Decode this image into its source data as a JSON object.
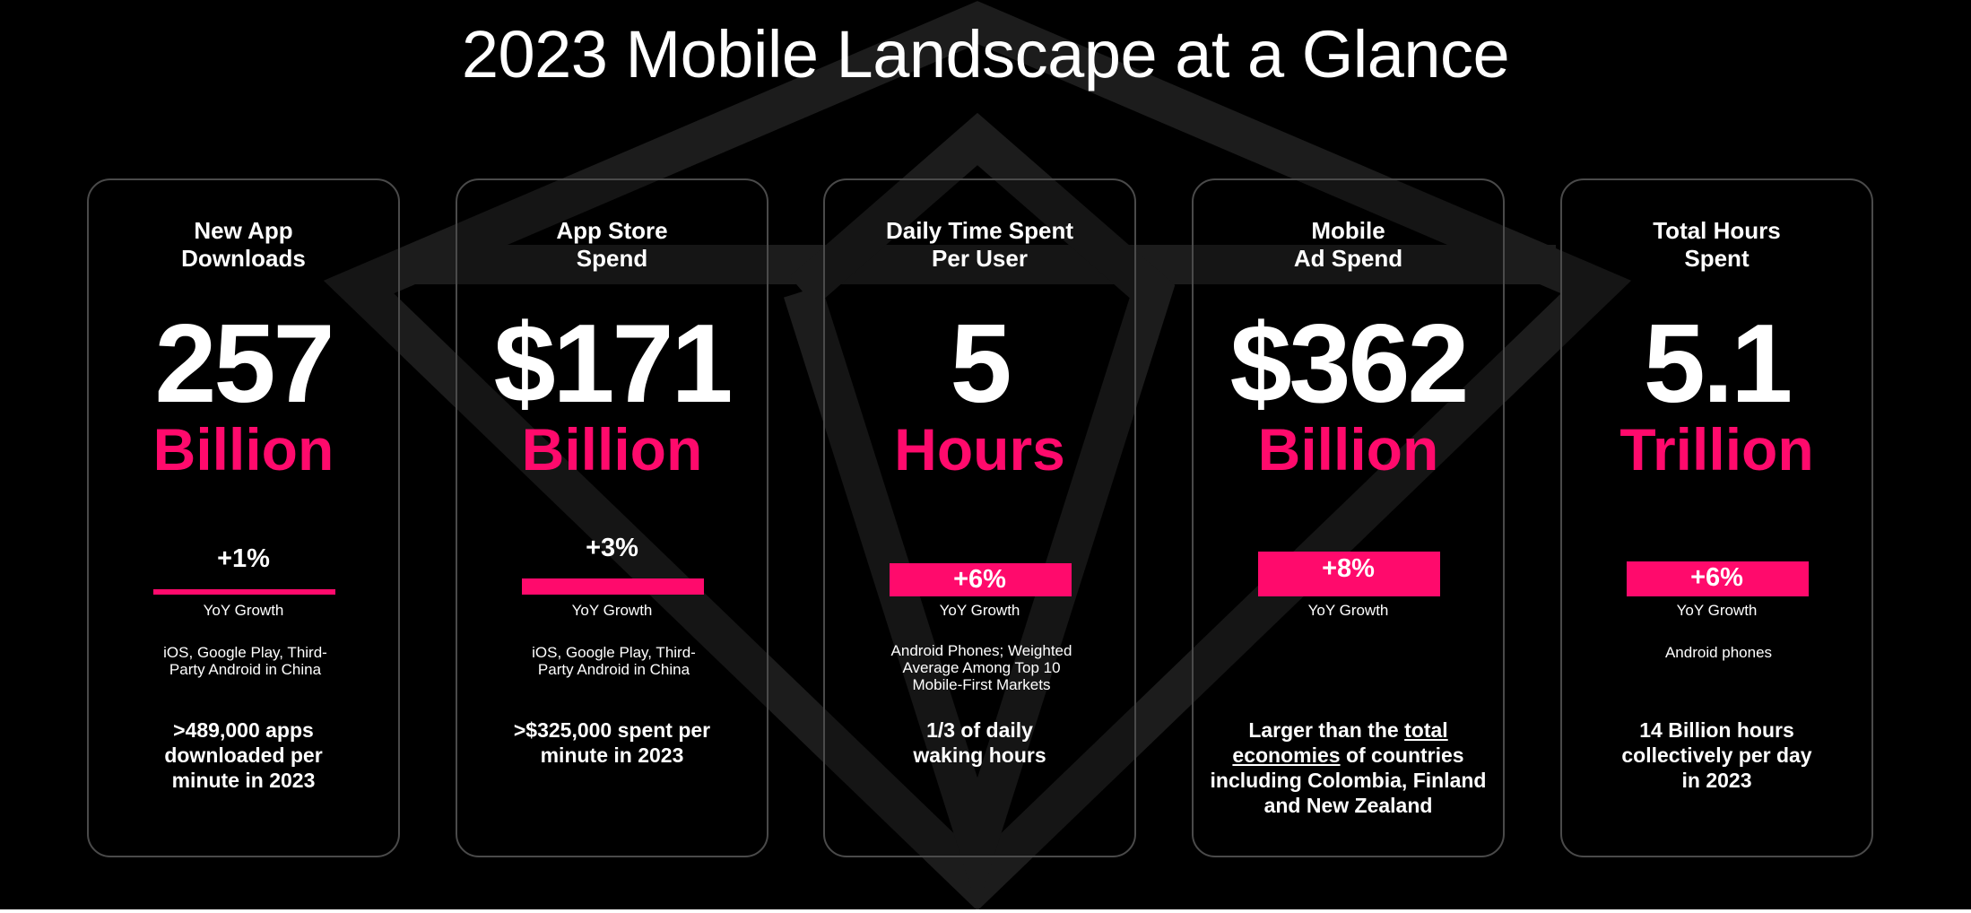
{
  "title": "2023 Mobile Landscape at a Glance",
  "colors": {
    "accent": "#ff0a6c",
    "background": "#000000",
    "card_border": "#4a4a4a",
    "text": "#ffffff"
  },
  "cards": [
    {
      "title": "New App\nDownloads",
      "value": "257",
      "unit": "Billion",
      "growth": "+1%",
      "growth_label": "YoY Growth",
      "note": "iOS, Google Play, Third-\nParty Android in China",
      "fact": ">489,000 apps\ndownloaded per\nminute in 2023"
    },
    {
      "title": "App Store\nSpend",
      "value": "$171",
      "unit": "Billion",
      "growth": "+3%",
      "growth_label": "YoY Growth",
      "note": "iOS, Google Play, Third-\nParty Android in China",
      "fact": ">$325,000 spent per\nminute in 2023"
    },
    {
      "title": "Daily Time Spent\nPer User",
      "value": "5",
      "unit": "Hours",
      "growth": "+6%",
      "growth_label": "YoY Growth",
      "note": "Android Phones; Weighted\nAverage Among Top 10\nMobile-First  Markets",
      "fact": "1/3 of daily\nwaking hours"
    },
    {
      "title": "Mobile\nAd Spend",
      "value": "$362",
      "unit": "Billion",
      "growth": "+8%",
      "growth_label": "YoY Growth",
      "note": "",
      "fact_pre": "Larger than the ",
      "fact_link1": "total",
      "fact_link2": "economies",
      "fact_post": " of countries\nincluding Colombia, Finland\nand New Zealand"
    },
    {
      "title": "Total Hours\nSpent",
      "value": "5.1",
      "unit": "Trillion",
      "growth": "+6%",
      "growth_label": "YoY Growth",
      "note": "Android phones",
      "fact": "14 Billion hours\ncollectively per day\nin 2023"
    }
  ]
}
